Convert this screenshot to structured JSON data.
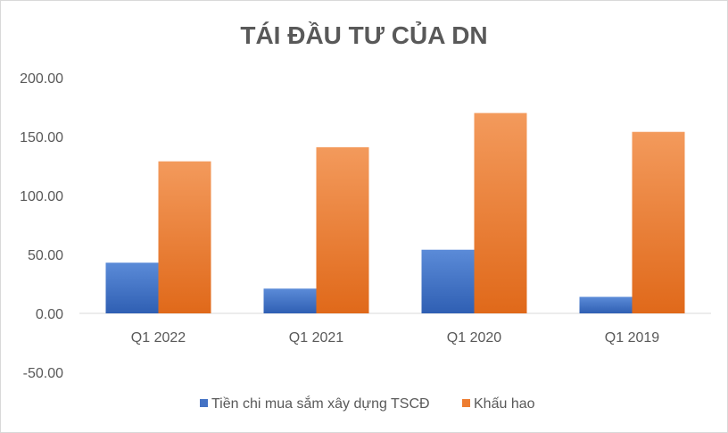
{
  "chart_data": {
    "type": "bar",
    "title": "TÁI ĐẦU TƯ CỦA DN",
    "categories": [
      "Q1 2022",
      "Q1 2021",
      "Q1 2020",
      "Q1 2019"
    ],
    "series": [
      {
        "name": "Tiền chi mua sắm xây dựng TSCĐ",
        "values": [
          43,
          21,
          54,
          14
        ],
        "color": "#4472c4"
      },
      {
        "name": "Khấu hao",
        "values": [
          129,
          141,
          170,
          154
        ],
        "color": "#ed7d31"
      }
    ],
    "yticks": [
      "200.00",
      "150.00",
      "100.00",
      "50.00",
      "0.00",
      "-50.00"
    ],
    "ylim": [
      -50,
      200
    ],
    "grid": false,
    "legend": "bottom"
  }
}
